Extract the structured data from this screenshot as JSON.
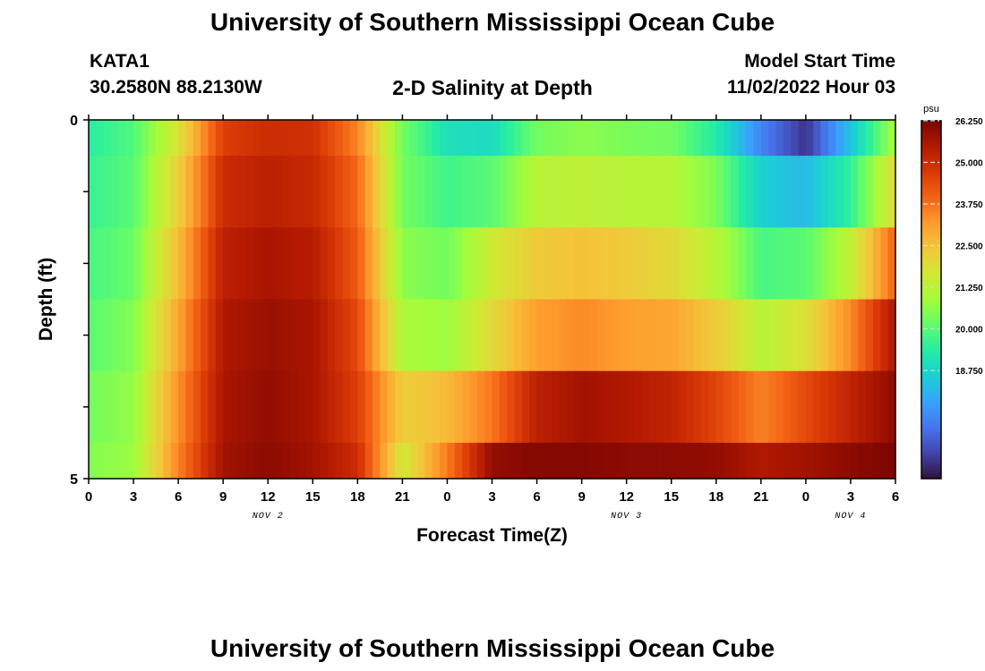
{
  "header": {
    "title": "University of Southern Mississippi Ocean Cube",
    "station": "KATA1",
    "coords": "30.2580N  88.2130W",
    "subtitle": "2-D Salinity at Depth",
    "model_label": "Model Start Time",
    "model_time": "11/02/2022 Hour 03"
  },
  "footer": {
    "title": "University of Southern Mississippi Ocean Cube"
  },
  "colors": {
    "colormap": [
      "#30123b",
      "#4145ab",
      "#4675ed",
      "#39a2fc",
      "#1bcfd4",
      "#24eca6",
      "#61fc6c",
      "#a4fc3b",
      "#d1e834",
      "#f3c63a",
      "#fe9b2d",
      "#f36315",
      "#d93806",
      "#b11901",
      "#7a0402"
    ],
    "axis": "#000000",
    "colorbar_tick": "#d9d9d9"
  },
  "chart_data": {
    "type": "heatmap",
    "title": "2-D Salinity at Depth",
    "xlabel": "Forecast Time(Z)",
    "ylabel": "Depth (ft)",
    "y_ticks": [
      "0",
      "5"
    ],
    "y_range": [
      0,
      5
    ],
    "x_ticks": [
      "0",
      "3",
      "6",
      "9",
      "12",
      "15",
      "18",
      "21",
      "0",
      "3",
      "6",
      "9",
      "12",
      "15",
      "18",
      "21",
      "0",
      "3",
      "6"
    ],
    "x_range_hours": [
      0,
      54
    ],
    "date_labels": [
      {
        "label": "NOV 2",
        "hour": 12
      },
      {
        "label": "NOV 3",
        "hour": 36
      },
      {
        "label": "NOV 4",
        "hour": 51
      }
    ],
    "colorbar": {
      "unit": "psu",
      "range": [
        15.5,
        26.25
      ],
      "tick_labels": [
        "26.250",
        "25.000",
        "23.750",
        "22.500",
        "21.250",
        "20.000",
        "18.750"
      ],
      "tick_values": [
        26.25,
        25.0,
        23.75,
        22.5,
        21.25,
        20.0,
        18.75
      ]
    },
    "depth_layers": [
      "0-0.5 ft",
      "0.5-1.5 ft",
      "1.5-2.5 ft",
      "2.5-3.5 ft",
      "3.5-4.5 ft",
      "4.5-5 ft"
    ],
    "time_hours": [
      0,
      3,
      6,
      9,
      12,
      15,
      18,
      21,
      24,
      27,
      30,
      33,
      36,
      39,
      42,
      45,
      48,
      51,
      54
    ],
    "salinity": [
      [
        19.4,
        19.9,
        21.8,
        24.6,
        25.0,
        24.9,
        23.5,
        20.3,
        19.0,
        18.9,
        20.3,
        20.6,
        20.4,
        20.3,
        19.3,
        17.3,
        16.0,
        18.4,
        21.0
      ],
      [
        19.6,
        20.0,
        22.2,
        25.0,
        25.3,
        25.1,
        23.9,
        20.3,
        19.7,
        20.0,
        21.2,
        21.3,
        21.2,
        21.2,
        20.4,
        18.6,
        18.2,
        19.5,
        22.0
      ],
      [
        19.8,
        20.2,
        22.6,
        25.3,
        25.6,
        25.4,
        24.1,
        20.6,
        20.3,
        21.6,
        22.3,
        22.5,
        22.3,
        22.0,
        21.2,
        19.8,
        20.0,
        21.3,
        24.0
      ],
      [
        20.0,
        20.5,
        23.0,
        25.5,
        25.8,
        25.6,
        24.4,
        21.0,
        20.8,
        22.0,
        23.1,
        23.4,
        23.1,
        23.0,
        22.3,
        21.2,
        21.8,
        23.4,
        25.6
      ],
      [
        20.3,
        20.7,
        23.3,
        25.6,
        25.9,
        25.6,
        24.6,
        22.2,
        22.6,
        23.7,
        25.3,
        25.7,
        25.5,
        25.2,
        24.5,
        23.5,
        24.4,
        25.2,
        26.0
      ],
      [
        20.5,
        20.8,
        23.5,
        25.7,
        26.0,
        25.7,
        25.0,
        21.6,
        23.6,
        25.9,
        26.1,
        26.1,
        26.0,
        26.0,
        25.9,
        25.5,
        25.7,
        26.0,
        26.2
      ]
    ]
  }
}
